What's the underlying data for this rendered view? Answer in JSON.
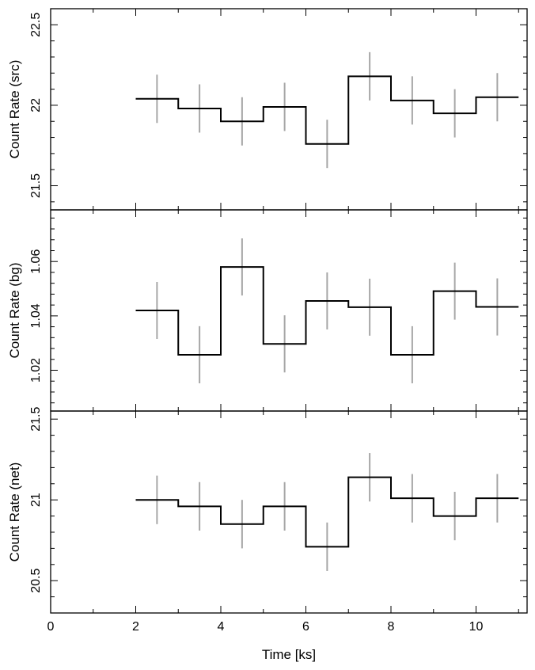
{
  "chart_data": [
    {
      "type": "step",
      "ylabel": "Count Rate (src)",
      "xlim": [
        0,
        11.2
      ],
      "ylim": [
        21.35,
        22.6
      ],
      "yticks_major": [
        21.5,
        22,
        22.5
      ],
      "ytick_labels": [
        "21.5",
        "22",
        "22.5"
      ],
      "bins": [
        {
          "x0": 2,
          "x1": 3,
          "x": 2.5,
          "value": 22.04,
          "err": 0.15
        },
        {
          "x0": 3,
          "x1": 4,
          "x": 3.5,
          "value": 21.98,
          "err": 0.15
        },
        {
          "x0": 4,
          "x1": 5,
          "x": 4.5,
          "value": 21.9,
          "err": 0.15
        },
        {
          "x0": 5,
          "x1": 6,
          "x": 5.5,
          "value": 21.99,
          "err": 0.15
        },
        {
          "x0": 6,
          "x1": 7,
          "x": 6.5,
          "value": 21.76,
          "err": 0.15
        },
        {
          "x0": 7,
          "x1": 8,
          "x": 7.5,
          "value": 22.18,
          "err": 0.15
        },
        {
          "x0": 8,
          "x1": 9,
          "x": 8.5,
          "value": 22.03,
          "err": 0.15
        },
        {
          "x0": 9,
          "x1": 10,
          "x": 9.5,
          "value": 21.95,
          "err": 0.15
        },
        {
          "x0": 10,
          "x1": 11,
          "x": 10.5,
          "value": 22.05,
          "err": 0.15
        }
      ]
    },
    {
      "type": "step",
      "ylabel": "Count Rate (bg)",
      "xlim": [
        0,
        11.2
      ],
      "ylim": [
        1.005,
        1.079
      ],
      "yticks_major": [
        1.02,
        1.04,
        1.06
      ],
      "ytick_labels": [
        "1.02",
        "1.04",
        "1.06"
      ],
      "bins": [
        {
          "x0": 2,
          "x1": 3,
          "x": 2.5,
          "value": 1.042,
          "err": 0.0105
        },
        {
          "x0": 3,
          "x1": 4,
          "x": 3.5,
          "value": 1.0257,
          "err": 0.0105
        },
        {
          "x0": 4,
          "x1": 5,
          "x": 4.5,
          "value": 1.058,
          "err": 0.0105
        },
        {
          "x0": 5,
          "x1": 6,
          "x": 5.5,
          "value": 1.0297,
          "err": 0.0105
        },
        {
          "x0": 6,
          "x1": 7,
          "x": 6.5,
          "value": 1.0455,
          "err": 0.0105
        },
        {
          "x0": 7,
          "x1": 8,
          "x": 7.5,
          "value": 1.0432,
          "err": 0.0105
        },
        {
          "x0": 8,
          "x1": 9,
          "x": 8.5,
          "value": 1.0257,
          "err": 0.0105
        },
        {
          "x0": 9,
          "x1": 10,
          "x": 9.5,
          "value": 1.0491,
          "err": 0.0105
        },
        {
          "x0": 10,
          "x1": 11,
          "x": 10.5,
          "value": 1.0433,
          "err": 0.0105
        }
      ]
    },
    {
      "type": "step",
      "ylabel": "Count Rate (net)",
      "xlabel": "Time [ks]",
      "xlim": [
        0,
        11.2
      ],
      "ylim": [
        20.3,
        21.55
      ],
      "yticks_major": [
        20.5,
        21,
        21.5
      ],
      "ytick_labels": [
        "20.5",
        "21",
        "21.5"
      ],
      "xticks_major": [
        0,
        2,
        4,
        6,
        8,
        10
      ],
      "xtick_labels": [
        "0",
        "2",
        "4",
        "6",
        "8",
        "10"
      ],
      "bins": [
        {
          "x0": 2,
          "x1": 3,
          "x": 2.5,
          "value": 21.0,
          "err": 0.15
        },
        {
          "x0": 3,
          "x1": 4,
          "x": 3.5,
          "value": 20.96,
          "err": 0.15
        },
        {
          "x0": 4,
          "x1": 5,
          "x": 4.5,
          "value": 20.85,
          "err": 0.15
        },
        {
          "x0": 5,
          "x1": 6,
          "x": 5.5,
          "value": 20.96,
          "err": 0.15
        },
        {
          "x0": 6,
          "x1": 7,
          "x": 6.5,
          "value": 20.71,
          "err": 0.15
        },
        {
          "x0": 7,
          "x1": 8,
          "x": 7.5,
          "value": 21.14,
          "err": 0.15
        },
        {
          "x0": 8,
          "x1": 9,
          "x": 8.5,
          "value": 21.01,
          "err": 0.15
        },
        {
          "x0": 9,
          "x1": 10,
          "x": 9.5,
          "value": 20.9,
          "err": 0.15
        },
        {
          "x0": 10,
          "x1": 11,
          "x": 10.5,
          "value": 21.01,
          "err": 0.15
        }
      ]
    }
  ],
  "colors": {
    "step_line": "#000000",
    "error_bar": "#a6a6a6",
    "frame": "#000000"
  }
}
